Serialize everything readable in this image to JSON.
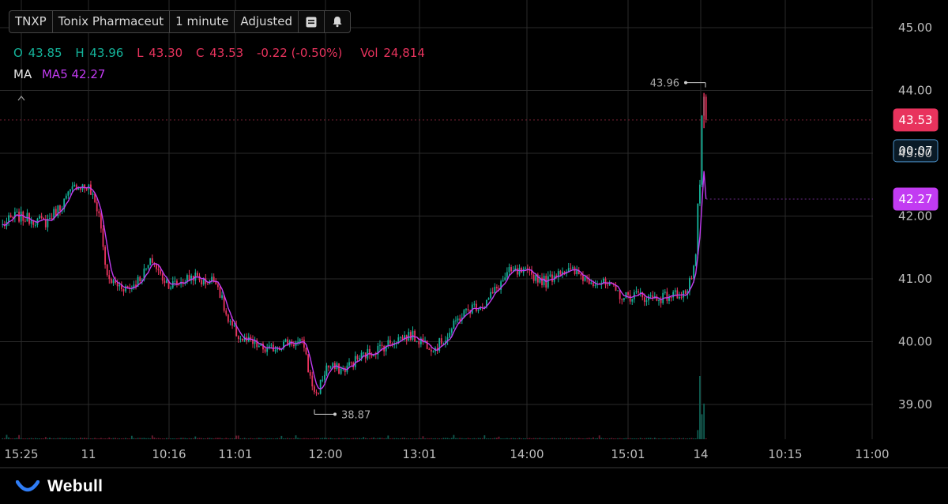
{
  "toolbar": {
    "ticker": "TNXP",
    "name": "Tonix Pharmaceut",
    "interval": "1 minute",
    "adjust": "Adjusted",
    "list_icon": "list-icon",
    "alert_icon": "bell-icon"
  },
  "ohlc": {
    "o_label": "O",
    "o_value": "43.85",
    "h_label": "H",
    "h_value": "43.96",
    "l_label": "L",
    "l_value": "43.30",
    "c_label": "C",
    "c_value": "43.53",
    "change": "-0.22 (-0.50%)",
    "vol_label": "Vol",
    "vol_value": "24,814"
  },
  "ma": {
    "label": "MA",
    "ma5_label": "MA5",
    "ma5_value": "42.27"
  },
  "price_tags": {
    "last": "43.53",
    "countdown": "00:07",
    "ma": "42.27"
  },
  "markers": {
    "high": "43.96",
    "low": "38.87"
  },
  "brand": {
    "name": "Webull"
  },
  "colors": {
    "background": "#000000",
    "up": "#14b39a",
    "down": "#e8335d",
    "ma": "#c23bf2",
    "grid": "#2a2a2a",
    "text": "#bdbdbd",
    "last_tag": "#e8335d",
    "countdown_border": "#4a90c8",
    "ma_tag": "#c23bf2"
  },
  "chart_data": {
    "type": "candlestick",
    "y_ticks": [
      "45.00",
      "44.00",
      "43.00",
      "42.00",
      "41.00",
      "40.00",
      "39.00"
    ],
    "ylim": [
      38.4,
      45.3
    ],
    "x_ticks": [
      "15:25",
      "11",
      "10:16",
      "11:01",
      "12:00",
      "13:01",
      "14:00",
      "15:01",
      "14",
      "10:15",
      "11:00"
    ],
    "close_path": [
      [
        0,
        41.85
      ],
      [
        6,
        42.0
      ],
      [
        14,
        41.95
      ],
      [
        21,
        41.9
      ],
      [
        28,
        42.15
      ],
      [
        36,
        42.5
      ],
      [
        42,
        42.45
      ],
      [
        47,
        42.05
      ],
      [
        51,
        41.0
      ],
      [
        56,
        40.9
      ],
      [
        62,
        40.85
      ],
      [
        68,
        41.05
      ],
      [
        73,
        41.3
      ],
      [
        77,
        41.05
      ],
      [
        82,
        40.9
      ],
      [
        87,
        40.95
      ],
      [
        93,
        41.05
      ],
      [
        98,
        40.95
      ],
      [
        104,
        41.0
      ],
      [
        110,
        40.3
      ],
      [
        116,
        40.05
      ],
      [
        123,
        39.95
      ],
      [
        129,
        39.85
      ],
      [
        135,
        39.95
      ],
      [
        140,
        40.0
      ],
      [
        147,
        39.95
      ],
      [
        150,
        39.4
      ],
      [
        153,
        39.15
      ],
      [
        158,
        39.6
      ],
      [
        166,
        39.55
      ],
      [
        174,
        39.75
      ],
      [
        184,
        39.9
      ],
      [
        193,
        40.05
      ],
      [
        199,
        40.1
      ],
      [
        205,
        40.0
      ],
      [
        211,
        39.9
      ],
      [
        217,
        40.1
      ],
      [
        223,
        40.4
      ],
      [
        229,
        40.55
      ],
      [
        235,
        40.6
      ],
      [
        241,
        40.85
      ],
      [
        247,
        41.1
      ],
      [
        253,
        41.1
      ],
      [
        259,
        41.05
      ],
      [
        265,
        40.95
      ],
      [
        272,
        41.15
      ],
      [
        279,
        41.1
      ],
      [
        285,
        41.0
      ],
      [
        291,
        40.95
      ],
      [
        297,
        40.85
      ],
      [
        303,
        40.7
      ],
      [
        309,
        40.75
      ],
      [
        315,
        40.7
      ],
      [
        321,
        40.7
      ],
      [
        328,
        40.75
      ],
      [
        334,
        40.8
      ],
      [
        338,
        41.3
      ],
      [
        339,
        42.2
      ],
      [
        340,
        42.5
      ],
      [
        341,
        43.6
      ],
      [
        342,
        43.9
      ],
      [
        343,
        43.53
      ]
    ],
    "volume_spikes": [
      [
        40,
        600
      ],
      [
        150,
        250
      ],
      [
        149,
        300
      ],
      [
        339,
        3600
      ],
      [
        340,
        24814
      ],
      [
        341,
        9800
      ],
      [
        342,
        14000
      ]
    ],
    "session_break_index": 40,
    "day_break_index": 339,
    "high": 43.96,
    "low": 38.87
  }
}
